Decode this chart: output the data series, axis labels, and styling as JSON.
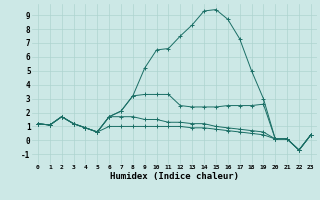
{
  "xlabel": "Humidex (Indice chaleur)",
  "bg_color": "#cce8e6",
  "line_color": "#1a6e65",
  "grid_color": "#aed4d0",
  "xlim": [
    -0.5,
    23.5
  ],
  "ylim": [
    -1.7,
    9.8
  ],
  "xticks": [
    0,
    1,
    2,
    3,
    4,
    5,
    6,
    7,
    8,
    9,
    10,
    11,
    12,
    13,
    14,
    15,
    16,
    17,
    18,
    19,
    20,
    21,
    22,
    23
  ],
  "yticks": [
    -1,
    0,
    1,
    2,
    3,
    4,
    5,
    6,
    7,
    8,
    9
  ],
  "series": [
    [
      1.2,
      1.1,
      1.7,
      1.2,
      0.9,
      0.6,
      1.7,
      2.1,
      3.2,
      5.2,
      6.5,
      6.6,
      7.5,
      8.3,
      9.3,
      9.4,
      8.7,
      7.3,
      5.0,
      3.0,
      0.1,
      0.1,
      -0.7,
      0.4
    ],
    [
      1.2,
      1.1,
      1.7,
      1.2,
      0.9,
      0.6,
      1.7,
      2.1,
      3.2,
      3.3,
      3.3,
      3.3,
      2.5,
      2.4,
      2.4,
      2.4,
      2.5,
      2.5,
      2.5,
      2.6,
      0.1,
      0.1,
      -0.7,
      0.4
    ],
    [
      1.2,
      1.1,
      1.7,
      1.2,
      0.9,
      0.6,
      1.7,
      1.7,
      1.7,
      1.5,
      1.5,
      1.3,
      1.3,
      1.2,
      1.2,
      1.0,
      0.9,
      0.8,
      0.7,
      0.6,
      0.1,
      0.1,
      -0.7,
      0.4
    ],
    [
      1.2,
      1.1,
      1.7,
      1.2,
      0.9,
      0.6,
      1.0,
      1.0,
      1.0,
      1.0,
      1.0,
      1.0,
      1.0,
      0.9,
      0.9,
      0.8,
      0.7,
      0.6,
      0.5,
      0.4,
      0.1,
      0.1,
      -0.7,
      0.4
    ]
  ]
}
